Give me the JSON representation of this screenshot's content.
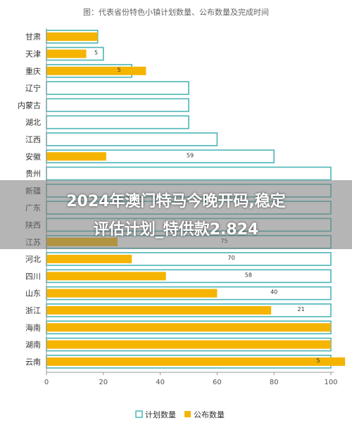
{
  "colors": {
    "plan_stroke": "#4cb5b5",
    "publish_fill": "#f5b400",
    "axis": "#999999",
    "grid": "#e6e6e6"
  },
  "chart_data": {
    "type": "bar",
    "orientation": "horizontal",
    "title": "图：代表省份特色小镇计划数量、公布数量及完成时间",
    "categories": [
      "甘肃",
      "天津",
      "重庆",
      "辽宁",
      "内蒙古",
      "湖北",
      "江西",
      "安徽",
      "贵州",
      "新疆",
      "广东",
      "陕西",
      "江苏",
      "河北",
      "四川",
      "山东",
      "浙江",
      "海南",
      "湖南",
      "云南"
    ],
    "series": [
      {
        "name": "计划数量",
        "values": [
          18,
          20,
          30,
          50,
          50,
          50,
          60,
          80,
          100,
          100,
          100,
          100,
          100,
          100,
          100,
          100,
          100,
          100,
          100,
          100
        ]
      },
      {
        "name": "公布数量",
        "values": [
          18,
          14,
          35,
          0,
          0,
          0,
          0,
          21,
          0,
          0,
          0,
          0,
          25,
          30,
          42,
          60,
          79,
          100,
          100,
          105
        ]
      }
    ],
    "data_labels": [
      "",
      "5",
      "5",
      "",
      "",
      "",
      "",
      "59",
      "",
      "",
      "",
      "",
      "75",
      "70",
      "58",
      "40",
      "21",
      "",
      "",
      "5"
    ],
    "x_ticks": [
      "0",
      "20",
      "40",
      "60",
      "80",
      "100"
    ],
    "xlim": [
      0,
      100
    ],
    "grid": false,
    "legend": "bottom-center"
  },
  "overlay": {
    "line1": "2024年澳门特马今晚开码,稳定",
    "line2": "评估计划_特供款2.824"
  }
}
